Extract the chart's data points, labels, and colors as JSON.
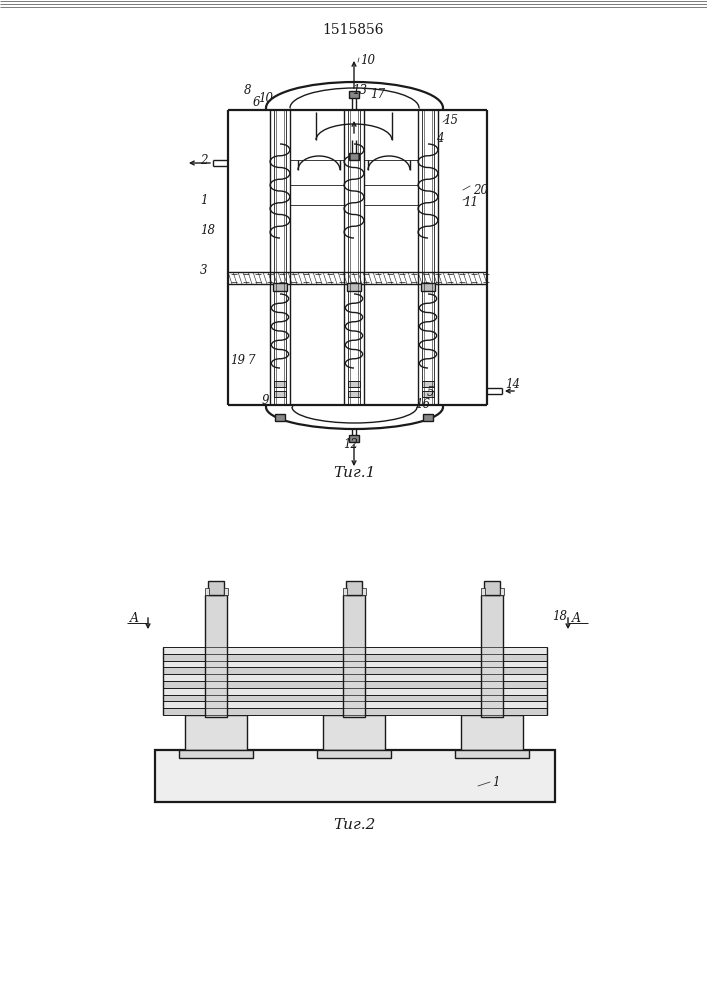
{
  "patent_number": "1515856",
  "fig1_label": "Τиг.1",
  "fig2_label": "Τиг.2",
  "bg_color": "#ffffff",
  "lc": "#1a1a1a",
  "lw": 1.0,
  "lwt": 0.6,
  "lwT": 1.6
}
